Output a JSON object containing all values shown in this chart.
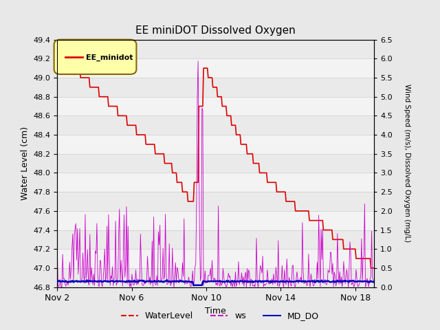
{
  "title": "EE miniDOT Dissolved Oxygen",
  "xlabel": "Time",
  "ylabel_left": "Water Level (cm)",
  "ylabel_right": "Wind Speed (m/s), Dissolved Oxygen (mg/L)",
  "legend_label": "EE_minidot",
  "ylim_left": [
    46.8,
    49.4
  ],
  "ylim_right": [
    0.0,
    6.5
  ],
  "background_color": "#e8e8e8",
  "plot_bg_color": "#e8e8e8",
  "water_level_color": "#dd0000",
  "ws_color": "#cc00cc",
  "md_do_color": "#0000bb",
  "xtick_labels": [
    "Nov 2",
    "Nov 6",
    "Nov 10",
    "Nov 14",
    "Nov 18"
  ],
  "ytick_left": [
    46.8,
    47.0,
    47.2,
    47.4,
    47.6,
    47.8,
    48.0,
    48.2,
    48.4,
    48.6,
    48.8,
    49.0,
    49.2,
    49.4
  ],
  "ytick_right": [
    0.0,
    0.5,
    1.0,
    1.5,
    2.0,
    2.5,
    3.0,
    3.5,
    4.0,
    4.5,
    5.0,
    5.5,
    6.0,
    6.5
  ]
}
